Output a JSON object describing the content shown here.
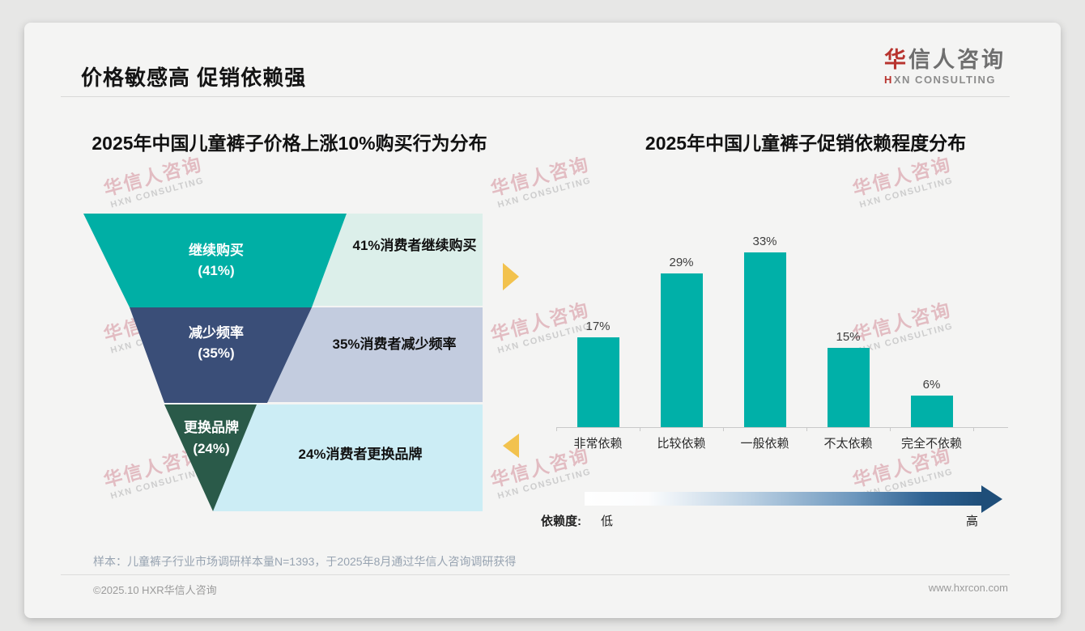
{
  "header": {
    "title": "价格敏感高 促销依赖强"
  },
  "logo": {
    "cn_accent": "华",
    "cn_rest": "信人咨询",
    "en_h": "H",
    "en_rest": "XN CONSULTING"
  },
  "watermark": {
    "line1": "华信人咨询",
    "line2": "HXN CONSULTING"
  },
  "chart_data": [
    {
      "type": "funnel",
      "title": "2025年中国儿童裤子价格上涨10%购买行为分布",
      "stages": [
        {
          "label": "继续购买",
          "pct_label": "(41%)",
          "value": 41,
          "desc": "41%消费者继续购买",
          "color": "#00AFA5",
          "desc_bg": "#DCEFEA"
        },
        {
          "label": "减少频率",
          "pct_label": "(35%)",
          "value": 35,
          "desc": "35%消费者减少频率",
          "color": "#3A4E78",
          "desc_bg": "#C3CCDF"
        },
        {
          "label": "更换品牌",
          "pct_label": "(24%)",
          "value": 24,
          "desc": "24%消费者更换品牌",
          "color": "#2A5A49",
          "desc_bg": "#CCEDF5"
        }
      ]
    },
    {
      "type": "bar",
      "title": "2025年中国儿童裤子促销依赖程度分布",
      "categories": [
        "非常依赖",
        "比较依赖",
        "一般依赖",
        "不太依赖",
        "完全不依赖"
      ],
      "values": [
        17,
        29,
        33,
        15,
        6
      ],
      "value_labels": [
        "17%",
        "29%",
        "33%",
        "15%",
        "6%"
      ],
      "bar_color": "#00B0A8",
      "ylim": [
        0,
        35
      ],
      "grid": false,
      "gradient_legend": {
        "label": "依赖度:",
        "low": "低",
        "high": "高"
      }
    }
  ],
  "footnote": {
    "text": "样本：儿童裤子行业市场调研样本量N=1393，于2025年8月通过华信人咨询调研获得"
  },
  "footer": {
    "left": "©2025.10 HXR华信人咨询",
    "right": "www.hxrcon.com"
  }
}
